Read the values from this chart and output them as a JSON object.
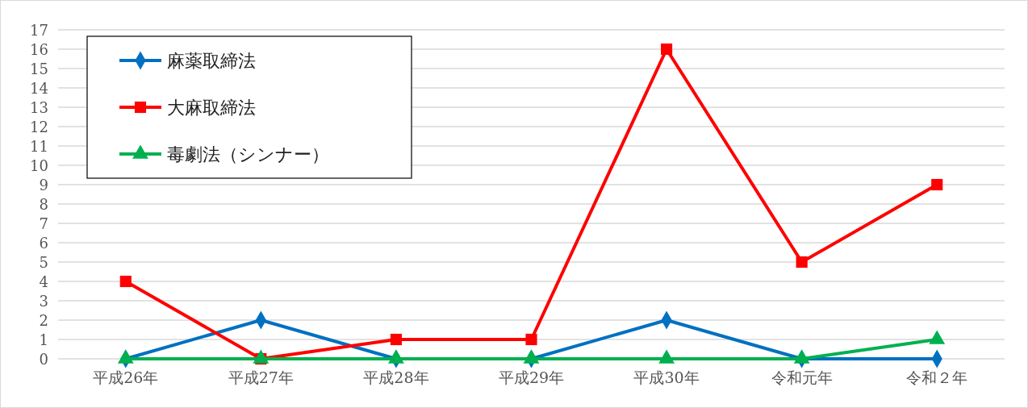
{
  "chart_data": {
    "type": "line",
    "categories": [
      "平成26年",
      "平成27年",
      "平成28年",
      "平成29年",
      "平成30年",
      "令和元年",
      "令和２年"
    ],
    "series": [
      {
        "name": "麻薬取締法",
        "color": "#0070c0",
        "marker": "diamond",
        "values": [
          0,
          2,
          0,
          0,
          2,
          0,
          0
        ]
      },
      {
        "name": "大麻取締法",
        "color": "#ff0000",
        "marker": "square",
        "values": [
          4,
          0,
          1,
          1,
          16,
          5,
          9
        ]
      },
      {
        "name": "毒劇法（シンナー）",
        "color": "#00b050",
        "marker": "triangle",
        "values": [
          0,
          0,
          0,
          0,
          0,
          0,
          1
        ]
      }
    ],
    "ylim": [
      0,
      17
    ],
    "yticks": [
      0,
      1,
      2,
      3,
      4,
      5,
      6,
      7,
      8,
      9,
      10,
      11,
      12,
      13,
      14,
      15,
      16,
      17
    ],
    "grid": "y",
    "legend": "top left",
    "line_style": "solid"
  }
}
